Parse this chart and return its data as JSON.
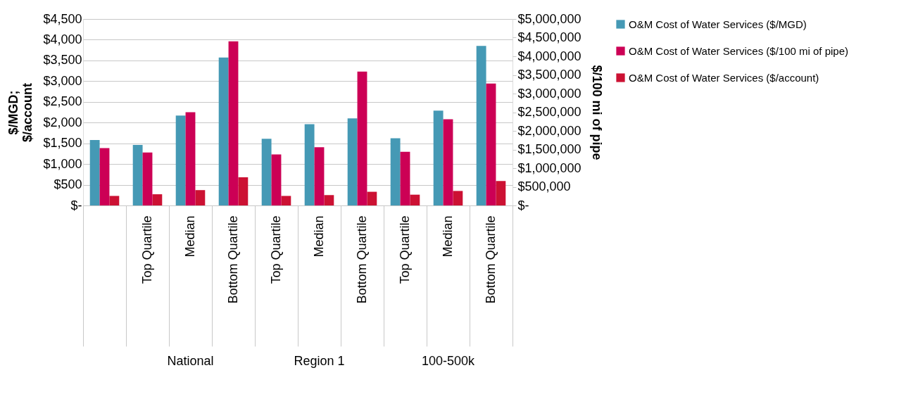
{
  "chart_data": {
    "type": "bar",
    "categories": [
      null,
      "Top Quartile",
      "Median",
      "Bottom Quartile",
      "Top Quartile",
      "Median",
      "Bottom Quartile",
      "Top Quartile",
      "Median",
      "Bottom Quartile"
    ],
    "annotations": [
      "National",
      "Region 1",
      "100-500k"
    ],
    "ylabel": "$/MGD; $/account",
    "y2label": "$/100 mi of pipe",
    "series": [
      {
        "name": "O&M Cost of Water Services ($/MGD)",
        "color": "#4599b5",
        "values": [
          1580,
          1460,
          2170,
          3570,
          1610,
          1960,
          2100,
          1620,
          2290,
          3850
        ]
      },
      {
        "name": "O&M Cost of Water Services ($/100 mi of pipe)",
        "color": "#cc0055",
        "axis": "y2",
        "values": [
          1540000,
          1420000,
          2500000,
          4400000,
          1370000,
          1560000,
          3590000,
          1440000,
          2310000,
          3270000
        ]
      },
      {
        "name": "O&M Cost of Water Services ($/account)",
        "color": "#cc1133",
        "values": [
          230,
          270,
          370,
          680,
          230,
          250,
          330,
          260,
          350,
          590
        ]
      }
    ],
    "ylim": [
      0,
      4500
    ],
    "yticks": [
      {
        "value": 0,
        "label": "$-"
      },
      {
        "value": 500,
        "label": "$500"
      },
      {
        "value": 1000,
        "label": "$1,000"
      },
      {
        "value": 1500,
        "label": "$1,500"
      },
      {
        "value": 2000,
        "label": "$2,000"
      },
      {
        "value": 2500,
        "label": "$2,500"
      },
      {
        "value": 3000,
        "label": "$3,000"
      },
      {
        "value": 3500,
        "label": "$3,500"
      },
      {
        "value": 4000,
        "label": "$4,000"
      },
      {
        "value": 4500,
        "label": "$4,500"
      }
    ],
    "y2lim": [
      0,
      5000000
    ],
    "y2ticks": [
      {
        "value": 0,
        "label": "$-"
      },
      {
        "value": 500000,
        "label": "$500,000"
      },
      {
        "value": 1000000,
        "label": "$1,000,000"
      },
      {
        "value": 1500000,
        "label": "$1,500,000"
      },
      {
        "value": 2000000,
        "label": "$2,000,000"
      },
      {
        "value": 2500000,
        "label": "$2,500,000"
      },
      {
        "value": 3000000,
        "label": "$3,000,000"
      },
      {
        "value": 3500000,
        "label": "$3,500,000"
      },
      {
        "value": 4000000,
        "label": "$4,000,000"
      },
      {
        "value": 4500000,
        "label": "$4,500,000"
      },
      {
        "value": 5000000,
        "label": "$5,000,000"
      }
    ],
    "grid": "y",
    "legend": "right"
  }
}
